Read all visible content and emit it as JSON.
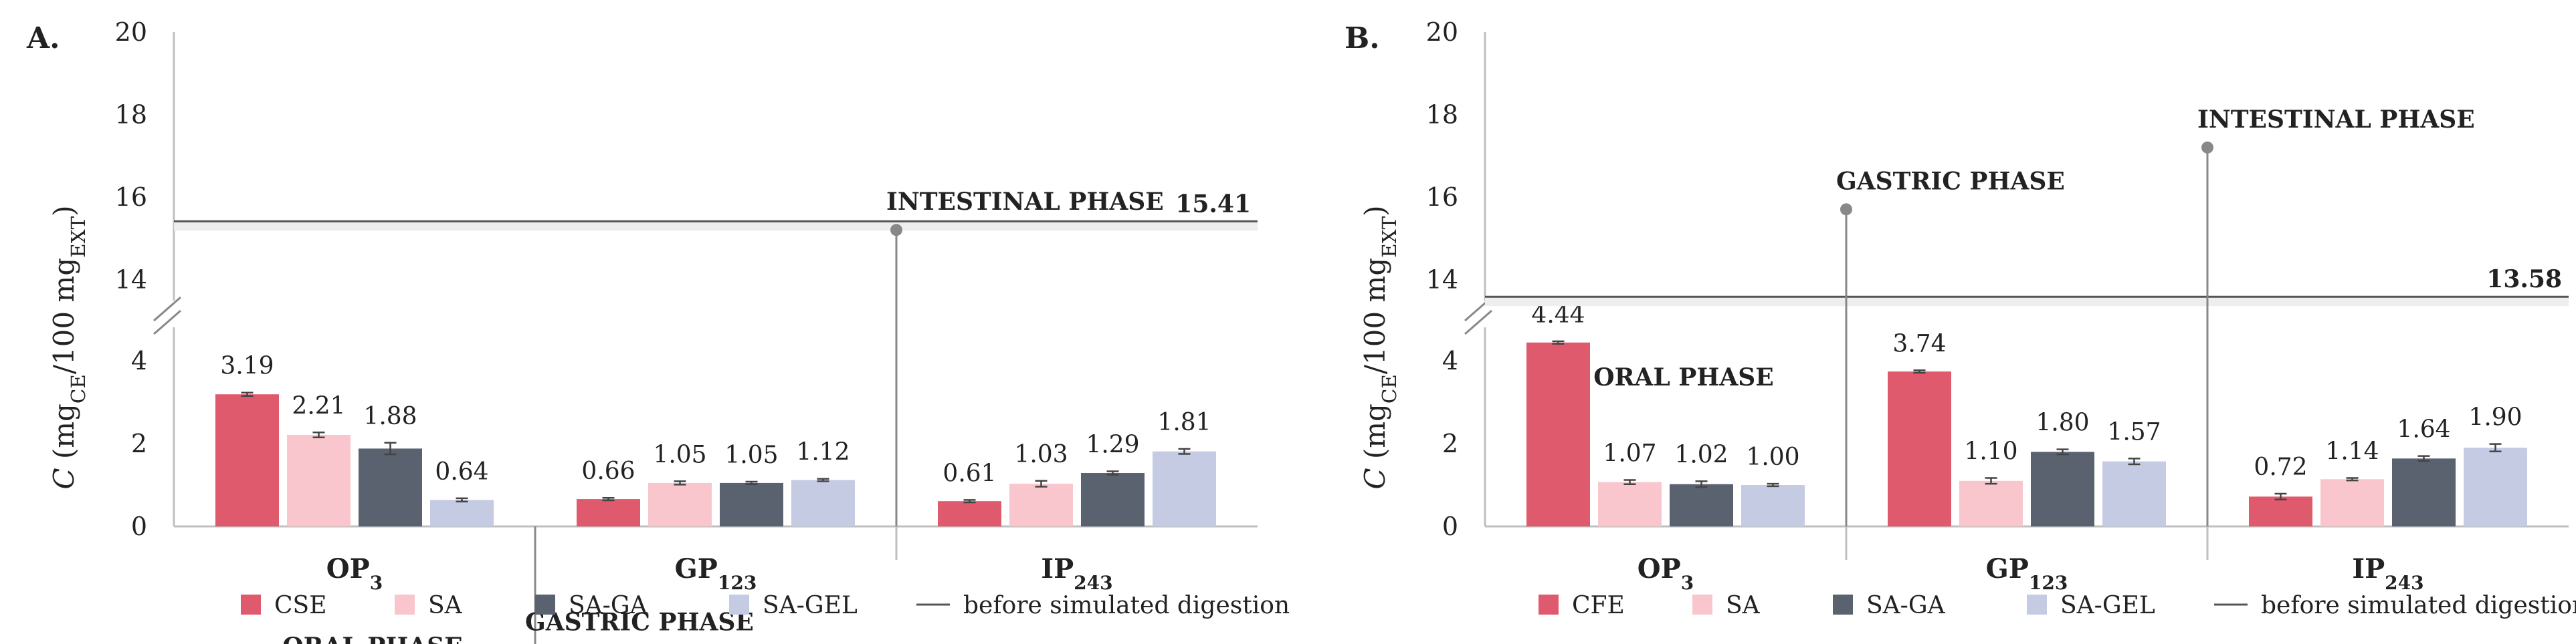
{
  "colors": {
    "CSE": "#e05a6e",
    "CFE": "#e05a6e",
    "SA": "#f8c6cc",
    "SA-GA": "#5a6270",
    "SA-GEL": "#c6cbe4",
    "refline": "#555555",
    "axis": "#bfbfbf",
    "errbar": "#444444"
  },
  "chart_data": [
    {
      "type": "bar",
      "panel_label": "A.",
      "y_axis": {
        "label_main": "C",
        "label_open": " (mg",
        "label_sub1": "CE",
        "label_mid": "/100 mg",
        "label_sub2": "EXT",
        "label_close": ")"
      },
      "axis_break": true,
      "lower_range": [
        0,
        4
      ],
      "upper_range": [
        13,
        20
      ],
      "lower_ticks": [
        "0",
        "2",
        "4"
      ],
      "upper_ticks": [
        "14",
        "16",
        "18",
        "20"
      ],
      "categories": [
        {
          "main": "OP",
          "sub": "3"
        },
        {
          "main": "GP",
          "sub": "123"
        },
        {
          "main": "IP",
          "sub": "243"
        }
      ],
      "series": [
        {
          "name": "CSE",
          "values": [
            3.19,
            0.66,
            0.61
          ],
          "errors": [
            0.04,
            0.03,
            0.03
          ],
          "labels": [
            "3.19",
            "0.66",
            "0.61"
          ]
        },
        {
          "name": "SA",
          "values": [
            2.21,
            1.05,
            1.03
          ],
          "errors": [
            0.06,
            0.04,
            0.07
          ],
          "labels": [
            "2.21",
            "1.05",
            "1.03"
          ]
        },
        {
          "name": "SA-GA",
          "values": [
            1.88,
            1.05,
            1.29
          ],
          "errors": [
            0.14,
            0.03,
            0.04
          ],
          "labels": [
            "1.88",
            "1.05",
            "1.29"
          ]
        },
        {
          "name": "SA-GEL",
          "values": [
            0.64,
            1.12,
            1.81
          ],
          "errors": [
            0.04,
            0.03,
            0.06
          ],
          "labels": [
            "0.64",
            "1.12",
            "1.81"
          ]
        }
      ],
      "reference": {
        "value": 15.41,
        "label": "15.41",
        "legend": "before simulated digestion"
      },
      "phases": [
        {
          "name": "ORAL PHASE",
          "type": "label",
          "value": 4.9
        },
        {
          "name": "GASTRIC PHASE",
          "type": "pin",
          "value": 5.0
        },
        {
          "name": "INTESTINAL PHASE",
          "type": "pin",
          "value": 15.2
        }
      ]
    },
    {
      "type": "bar",
      "panel_label": "B.",
      "y_axis": {
        "label_main": "C",
        "label_open": " (mg",
        "label_sub1": "CE",
        "label_mid": "/100 mg",
        "label_sub2": "EXT",
        "label_close": ")"
      },
      "axis_break": true,
      "lower_range": [
        0,
        4
      ],
      "upper_range": [
        13,
        20
      ],
      "lower_ticks": [
        "0",
        "2",
        "4"
      ],
      "upper_ticks": [
        "14",
        "16",
        "18",
        "20"
      ],
      "categories": [
        {
          "main": "OP",
          "sub": "3"
        },
        {
          "main": "GP",
          "sub": "123"
        },
        {
          "main": "IP",
          "sub": "243"
        }
      ],
      "series": [
        {
          "name": "CFE",
          "values": [
            4.44,
            3.74,
            0.72
          ],
          "errors": [
            0.03,
            0.03,
            0.07
          ],
          "labels": [
            "4.44",
            "3.74",
            "0.72"
          ]
        },
        {
          "name": "SA",
          "values": [
            1.07,
            1.1,
            1.14
          ],
          "errors": [
            0.05,
            0.07,
            0.03
          ],
          "labels": [
            "1.07",
            "1.10",
            "1.14"
          ]
        },
        {
          "name": "SA-GA",
          "values": [
            1.02,
            1.8,
            1.64
          ],
          "errors": [
            0.07,
            0.06,
            0.06
          ],
          "labels": [
            "1.02",
            "1.80",
            "1.64"
          ]
        },
        {
          "name": "SA-GEL",
          "values": [
            1.0,
            1.57,
            1.9
          ],
          "errors": [
            0.03,
            0.07,
            0.09
          ],
          "labels": [
            "1.00",
            "1.57",
            "1.90"
          ]
        }
      ],
      "reference": {
        "value": 13.58,
        "label": "13.58",
        "legend": "before simulated digestion"
      },
      "phases": [
        {
          "name": "ORAL PHASE",
          "type": "label",
          "value": 3.4
        },
        {
          "name": "GASTRIC PHASE",
          "type": "pin",
          "value": 15.7
        },
        {
          "name": "INTESTINAL PHASE",
          "type": "pin",
          "value": 17.2
        }
      ]
    }
  ]
}
